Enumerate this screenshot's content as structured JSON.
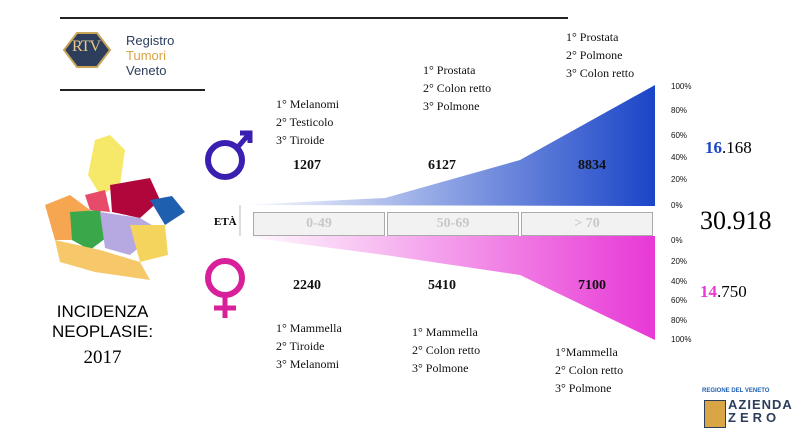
{
  "logo": {
    "mark": "RTV",
    "lines": [
      "Registro",
      "Tumori",
      "Veneto"
    ]
  },
  "title": {
    "lines": [
      "INCIDENZA",
      "NEOPLASIE:"
    ],
    "year": "2017"
  },
  "age_label": "ETÀ",
  "age_groups": [
    "0-49",
    "50-69",
    "> 70"
  ],
  "male": {
    "groups": [
      {
        "count": "1207",
        "ranks": [
          "1° Melanomi",
          "2° Testicolo",
          "3° Tiroide"
        ]
      },
      {
        "count": "6127",
        "ranks": [
          "1° Prostata",
          "2° Colon retto",
          "3° Polmone"
        ]
      },
      {
        "count": "8834",
        "ranks": [
          "1° Prostata",
          "2° Polmone",
          "3° Colon retto"
        ]
      }
    ],
    "total_lead": "16",
    "total_rest": ".168",
    "scale": [
      "100%",
      "80%",
      "60%",
      "40%",
      "20%",
      "0%"
    ]
  },
  "female": {
    "groups": [
      {
        "count": "2240",
        "ranks": [
          "1° Mammella",
          "2° Tiroide",
          "3° Melanomi"
        ]
      },
      {
        "count": "5410",
        "ranks": [
          "1° Mammella",
          "2° Colon retto",
          "3° Polmone"
        ]
      },
      {
        "count": "7100",
        "ranks": [
          "1°Mammella",
          "2° Colon retto",
          "3° Polmone"
        ]
      }
    ],
    "total_lead": "14",
    "total_rest": ".750",
    "scale": [
      "0%",
      "20%",
      "40%",
      "60%",
      "80%",
      "100%"
    ]
  },
  "grand_total": "30.918",
  "footer": {
    "region": "REGIONE DEL VENETO",
    "org": [
      "AZIENDA",
      "ZERO"
    ]
  }
}
